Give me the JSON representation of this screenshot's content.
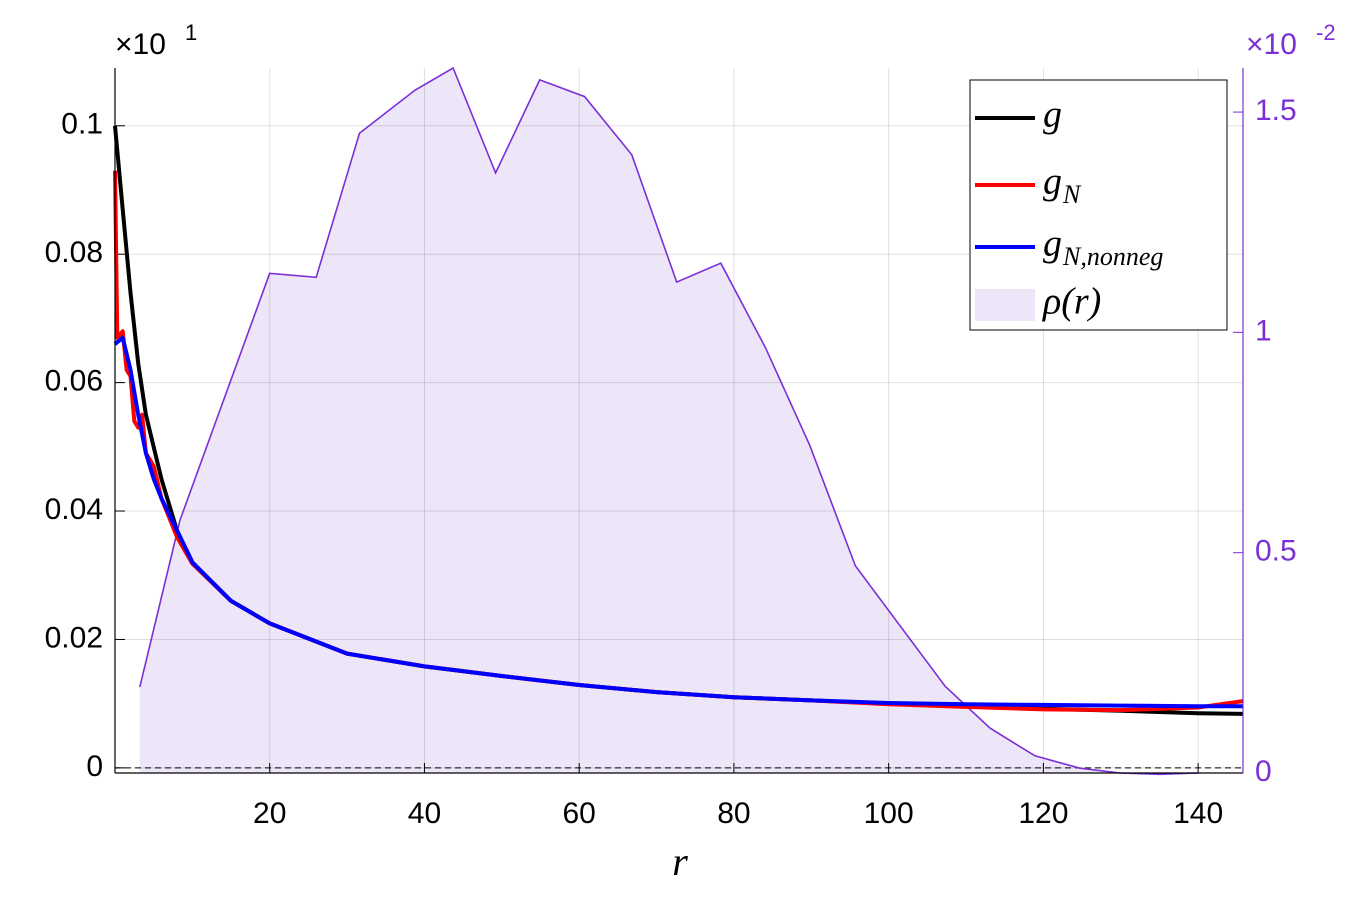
{
  "chart_data": {
    "type": "line",
    "x_label": "r",
    "y_exponent": {
      "base": "×10",
      "power": "1"
    },
    "y2_exponent": {
      "base": "×10",
      "power": "-2"
    },
    "xlim": [
      0,
      145.8
    ],
    "xticks": [
      20,
      40,
      60,
      80,
      100,
      120,
      140
    ],
    "ylim": [
      -0.0008,
      0.109
    ],
    "yticks": [
      0,
      0.02,
      0.04,
      0.06,
      0.08,
      0.1
    ],
    "y2lim": [
      0,
      1.6
    ],
    "y2ticks": [
      0,
      0.5,
      1,
      1.5
    ],
    "grid": true,
    "legend": "upper right",
    "zero_line": 0,
    "series": [
      {
        "name": "g",
        "color": "#000000",
        "x": [
          0,
          1,
          2,
          3,
          4,
          6,
          8,
          10,
          15,
          20,
          30,
          40,
          50,
          60,
          70,
          80,
          90,
          100,
          110,
          120,
          130,
          140,
          145.8
        ],
        "values": [
          0.1,
          0.087,
          0.074,
          0.063,
          0.055,
          0.045,
          0.037,
          0.032,
          0.026,
          0.0225,
          0.0178,
          0.0158,
          0.0143,
          0.0129,
          0.0118,
          0.011,
          0.0105,
          0.01,
          0.0096,
          0.0092,
          0.0089,
          0.0085,
          0.0084
        ]
      },
      {
        "name": "g",
        "subscript": "N",
        "color": "#ff0000",
        "x": [
          0,
          0.3,
          1,
          1.5,
          2,
          2.5,
          3,
          3.5,
          4,
          5,
          6,
          8,
          10,
          15,
          20,
          30,
          40,
          50,
          60,
          70,
          80,
          90,
          100,
          110,
          120,
          130,
          140,
          145.8
        ],
        "values": [
          0.093,
          0.067,
          0.068,
          0.062,
          0.061,
          0.054,
          0.053,
          0.055,
          0.049,
          0.047,
          0.042,
          0.036,
          0.0318,
          0.026,
          0.0225,
          0.0178,
          0.0158,
          0.0143,
          0.0129,
          0.0118,
          0.011,
          0.0105,
          0.0099,
          0.0095,
          0.0091,
          0.009,
          0.0094,
          0.0104
        ]
      },
      {
        "name": "g",
        "subscript": "N,nonneg",
        "color": "#0000ff",
        "x": [
          0,
          1,
          2,
          3,
          4,
          5,
          6,
          8,
          10,
          15,
          20,
          30,
          40,
          50,
          60,
          70,
          80,
          90,
          100,
          110,
          120,
          130,
          140,
          145.8
        ],
        "values": [
          0.066,
          0.067,
          0.062,
          0.055,
          0.049,
          0.045,
          0.042,
          0.037,
          0.032,
          0.026,
          0.0225,
          0.0178,
          0.0158,
          0.0143,
          0.0129,
          0.0118,
          0.011,
          0.0105,
          0.0101,
          0.0099,
          0.0098,
          0.0097,
          0.0096,
          0.0096
        ]
      },
      {
        "name": "ρ(r)",
        "color": "#7b2fd6",
        "fill": "#ede5f8",
        "axis": "y2",
        "x": [
          3.2,
          8.4,
          20,
          26,
          31.6,
          38.8,
          43.7,
          49.2,
          54.9,
          60.7,
          66.8,
          72.6,
          78.3,
          84.1,
          89.8,
          95.7,
          107.3,
          113.1,
          118.9,
          124.7,
          129.9,
          135,
          140
        ],
        "values": [
          0.195,
          0.574,
          1.134,
          1.125,
          1.452,
          1.55,
          1.6,
          1.362,
          1.573,
          1.535,
          1.403,
          1.114,
          1.157,
          0.964,
          0.744,
          0.47,
          0.197,
          0.102,
          0.039,
          0.011,
          0,
          -0.003,
          0
        ]
      }
    ]
  }
}
